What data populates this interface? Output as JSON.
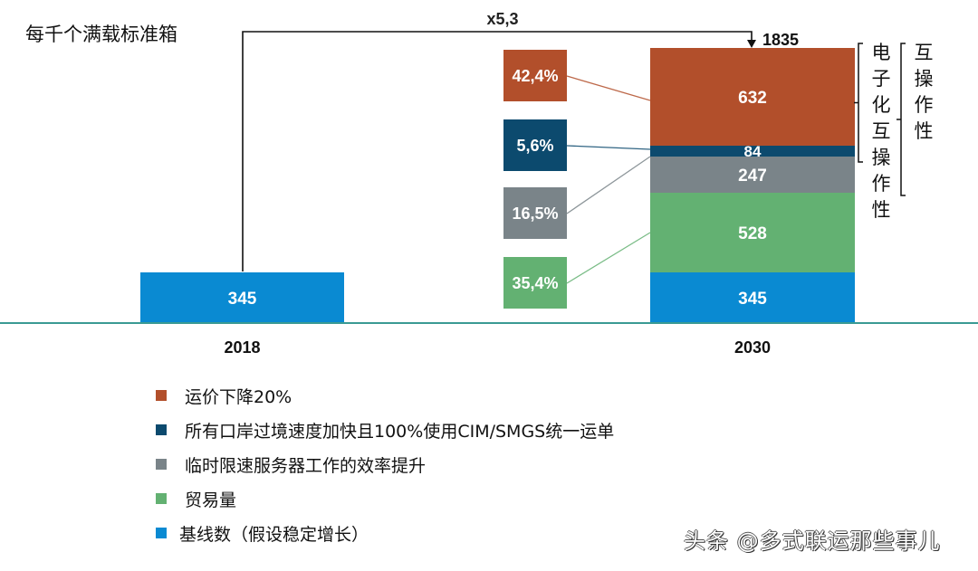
{
  "unit_title": "每千个满载标准箱",
  "watermark": "头条 @多式联运那些事儿",
  "growth_label": "x5,3",
  "total_label": "1835",
  "brackets": {
    "inner": "电子化互操作性",
    "outer": "互操作性"
  },
  "colors": {
    "price": "#b24f2b",
    "border": "#0c4a6e",
    "temp": "#7a8489",
    "trade": "#63b172",
    "base": "#0a8ad2",
    "axis": "#3a9a93"
  },
  "chart_data": {
    "type": "bar",
    "stacked": true,
    "title": "每千个满载标准箱",
    "xlabel": "",
    "ylabel": "每千个满载标准箱",
    "categories": [
      "2018",
      "2030"
    ],
    "ylim": [
      0,
      1835
    ],
    "grid": false,
    "legend_position": "bottom-left",
    "series": [
      {
        "key": "base",
        "name": "基线数（假设稳定增长）",
        "values": [
          345,
          345
        ]
      },
      {
        "key": "trade",
        "name": "贸易量",
        "values": [
          0,
          528
        ],
        "share": "35,4%"
      },
      {
        "key": "temp",
        "name": "临时限速服务器工作的效率提升",
        "values": [
          0,
          247
        ],
        "share": "16,5%"
      },
      {
        "key": "border",
        "name": "所有口岸过境速度加快且100%使用CIM/SMGS统一运单",
        "values": [
          0,
          84
        ],
        "share": "5,6%"
      },
      {
        "key": "price",
        "name": "运价下降20%",
        "values": [
          0,
          632
        ],
        "share": "42,4%"
      }
    ],
    "totals": [
      345,
      1835
    ],
    "annotations": [
      "x5,3",
      "1835"
    ],
    "legend": [
      {
        "key": "price",
        "label": "运价下降20%"
      },
      {
        "key": "border",
        "label": "所有口岸过境速度加快且100%使用CIM/SMGS统一运单"
      },
      {
        "key": "temp",
        "label": "临时限速服务器工作的效率提升"
      },
      {
        "key": "trade",
        "label": "贸易量"
      },
      {
        "key": "base",
        "label": "基线数（假设稳定增长）"
      }
    ]
  }
}
